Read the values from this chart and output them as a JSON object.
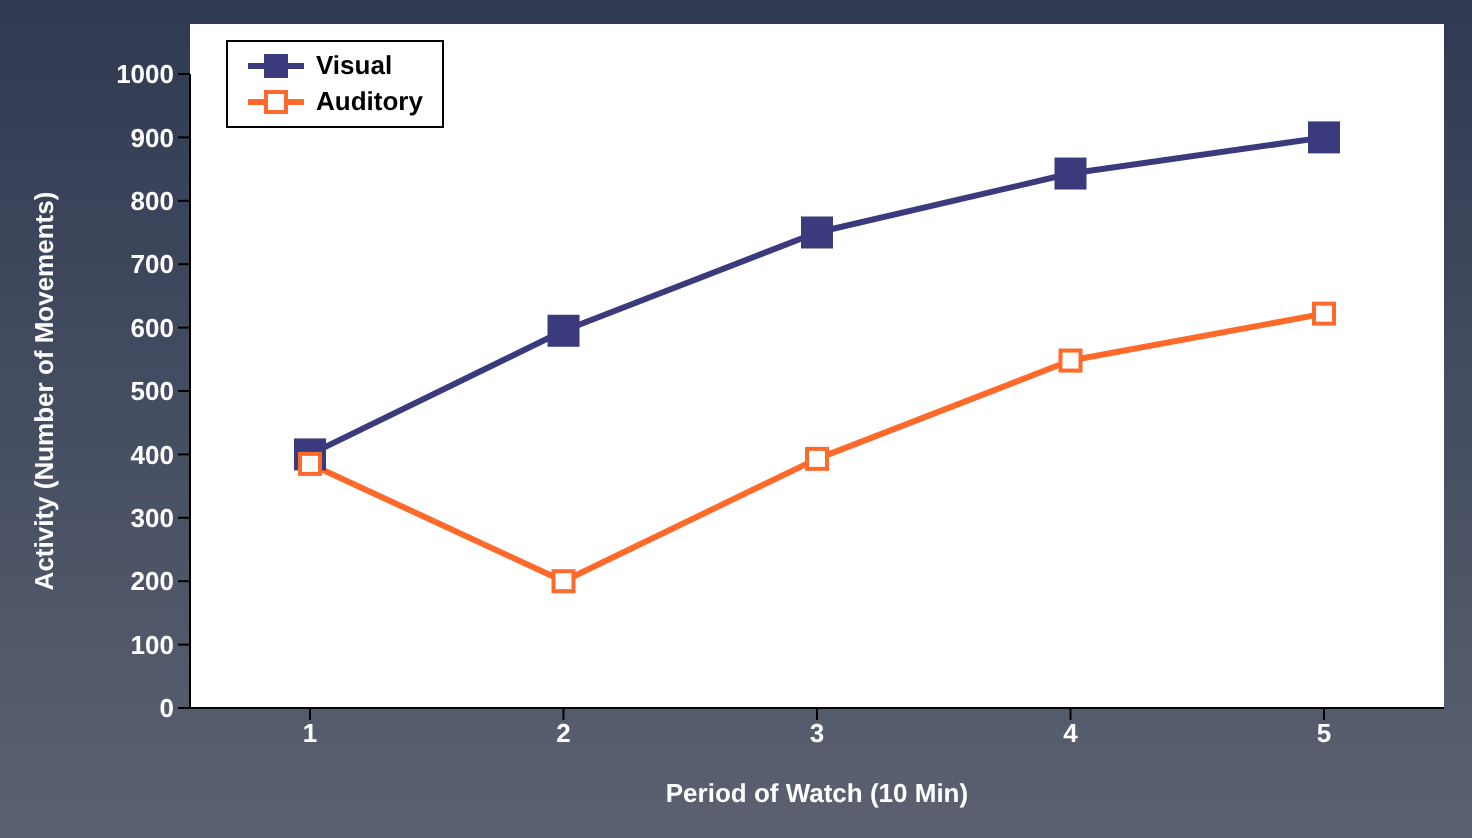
{
  "chart_data": {
    "type": "line",
    "xlabel": "Period of Watch (10 Min)",
    "ylabel": "Activity (Number of Movements)",
    "categories": [
      "1",
      "2",
      "3",
      "4",
      "5"
    ],
    "series": [
      {
        "name": "Visual",
        "color": "#3b3a7c",
        "values": [
          400,
          595,
          750,
          843,
          900
        ]
      },
      {
        "name": "Auditory",
        "color": "#ff6a2a",
        "values": [
          385,
          200,
          393,
          548,
          622
        ]
      }
    ],
    "ylim": [
      0,
      1000
    ],
    "yticks": [
      0,
      100,
      200,
      300,
      400,
      500,
      600,
      700,
      800,
      900,
      1000
    ],
    "grid": false,
    "legend": "top left",
    "marker": "square",
    "line_style": "solid"
  }
}
